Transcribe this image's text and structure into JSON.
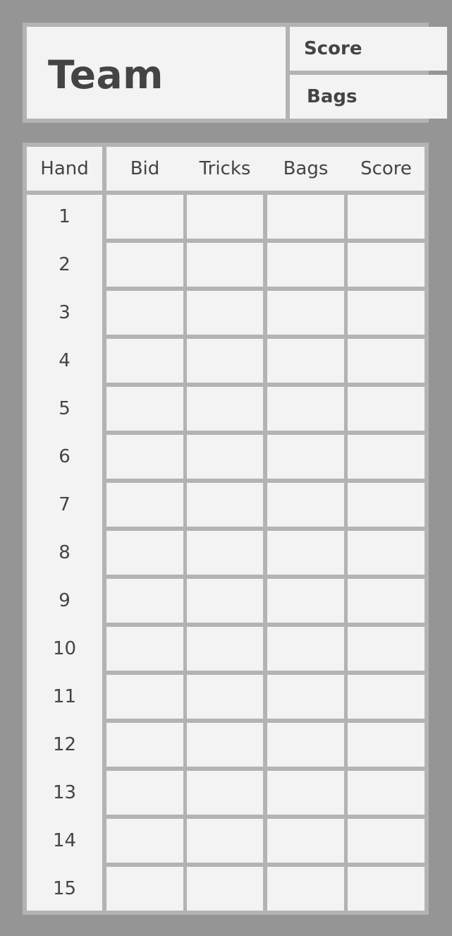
{
  "header": {
    "team_label": "Team",
    "score_label": "Score",
    "bags_label": "Bags"
  },
  "table": {
    "columns": [
      "Hand",
      "Bid",
      "Tricks",
      "Bags",
      "Score"
    ],
    "hands": [
      "1",
      "2",
      "3",
      "4",
      "5",
      "6",
      "7",
      "8",
      "9",
      "10",
      "11",
      "12",
      "13",
      "14",
      "15"
    ],
    "entries": []
  },
  "colors": {
    "background": "#959595",
    "panel_border": "#b3b3b3",
    "cell": "#f3f3f3",
    "text": "#444444"
  }
}
